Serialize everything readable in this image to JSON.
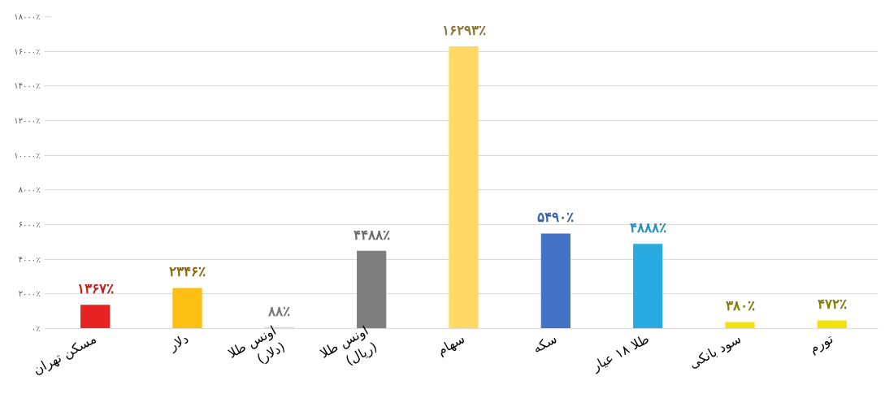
{
  "chart_data": {
    "type": "bar",
    "categories": [
      "مسکن تهران",
      "دلار",
      "اونس طلا\n(دلار)",
      "اونس طلا\n(ریال)",
      "سهام",
      "سکه",
      "طلا ۱۸ عیار",
      "سود بانکی",
      "تورم"
    ],
    "values": [
      1367,
      2346,
      88,
      4488,
      16293,
      5490,
      4888,
      380,
      472
    ],
    "value_labels": [
      "۱۳۶۷٪",
      "۲۳۴۶٪",
      "۸۸٪",
      "۴۴۸۸٪",
      "۱۶۲۹۳٪",
      "۵۴۹۰٪",
      "۴۸۸۸٪",
      "۳۸۰٪",
      "۴۷۲٪"
    ],
    "colors": [
      "#e52421",
      "#fdbf12",
      "#dcdde6",
      "#7f7f7f",
      "#ffd966",
      "#4472c4",
      "#29abe2",
      "#f2e20a",
      "#f2e20a"
    ],
    "ylim": [
      0,
      18000
    ],
    "yticks": [
      {
        "value": 0,
        "label": "۰٪"
      },
      {
        "value": 2000,
        "label": "۲۰۰۰٪"
      },
      {
        "value": 4000,
        "label": "۴۰۰۰٪"
      },
      {
        "value": 6000,
        "label": "۶۰۰۰٪"
      },
      {
        "value": 8000,
        "label": "۸۰۰۰٪"
      },
      {
        "value": 10000,
        "label": "۱۰۰۰۰٪"
      },
      {
        "value": 12000,
        "label": "۱۲۰۰۰٪"
      },
      {
        "value": 14000,
        "label": "۱۴۰۰۰٪"
      },
      {
        "value": 16000,
        "label": "۱۶۰۰۰٪"
      },
      {
        "value": 18000,
        "label": "۱۸۰۰۰٪"
      }
    ],
    "grid": "y"
  }
}
